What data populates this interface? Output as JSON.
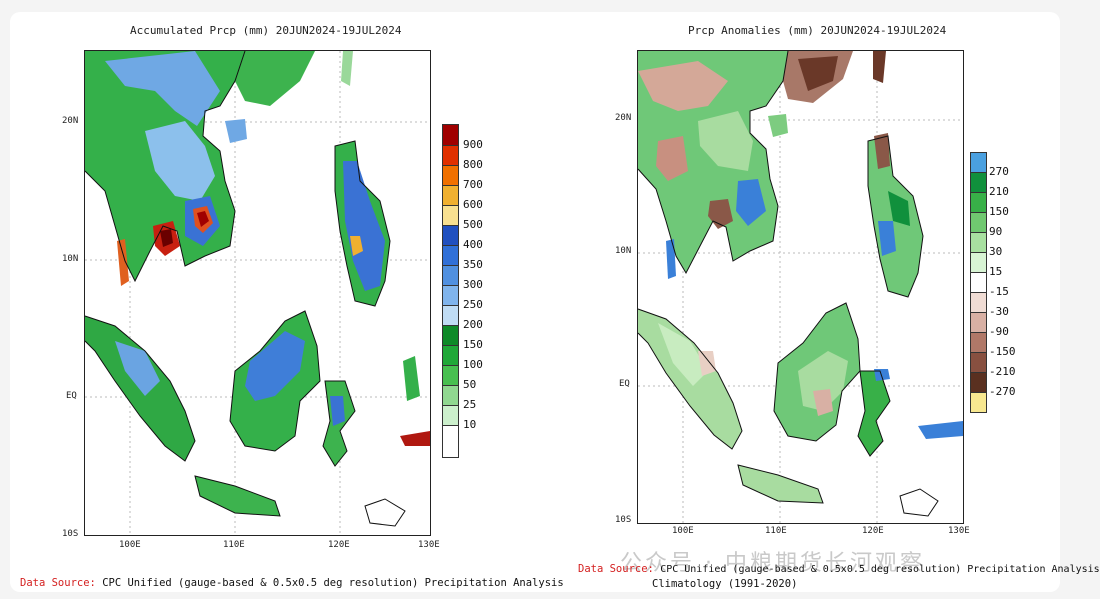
{
  "left_map": {
    "title": "Accumulated Prcp (mm) 20JUN2024-19JUL2024",
    "lat_labels": [
      "20N",
      "10N",
      "EQ",
      "10S"
    ],
    "lon_labels": [
      "100E",
      "110E",
      "120E",
      "130E"
    ],
    "legend": {
      "labels": [
        "900",
        "800",
        "700",
        "600",
        "500",
        "400",
        "350",
        "300",
        "250",
        "200",
        "150",
        "100",
        "50",
        "25",
        "10"
      ],
      "colors": [
        "#a00000",
        "#e03000",
        "#f07000",
        "#f0b030",
        "#f8e090",
        "#2050c0",
        "#3070d8",
        "#5090e0",
        "#80b4ec",
        "#c0dcf4",
        "#0e8a28",
        "#20a838",
        "#48c050",
        "#90d890",
        "#ccf0cc",
        "#ffffff"
      ]
    },
    "source_label": "Data Source:",
    "source_text": "CPC Unified (gauge-based & 0.5x0.5 deg resolution) Precipitation Analysis"
  },
  "right_map": {
    "title": "Prcp Anomalies (mm) 20JUN2024-19JUL2024",
    "lat_labels": [
      "20N",
      "10N",
      "EQ",
      "10S"
    ],
    "lon_labels": [
      "100E",
      "110E",
      "120E",
      "130E"
    ],
    "legend": {
      "labels": [
        "270",
        "210",
        "150",
        "90",
        "30",
        "15",
        "-15",
        "-30",
        "-90",
        "-150",
        "-210",
        "-270"
      ],
      "colors": [
        "#4aa0e0",
        "#10903c",
        "#38b048",
        "#70c870",
        "#a8e0a0",
        "#d8f4d4",
        "#ffffff",
        "#f0dcd4",
        "#d8b0a4",
        "#b07868",
        "#885040",
        "#5a3020",
        "#f8e890"
      ]
    },
    "source_label": "Data Source:",
    "source_text": "CPC Unified (gauge-based & 0.5x0.5 deg resolution) Precipitation Analysis",
    "climatology": "Climatology (1991-2020)"
  },
  "watermark": "公众号 · 中粮期货长河观察"
}
